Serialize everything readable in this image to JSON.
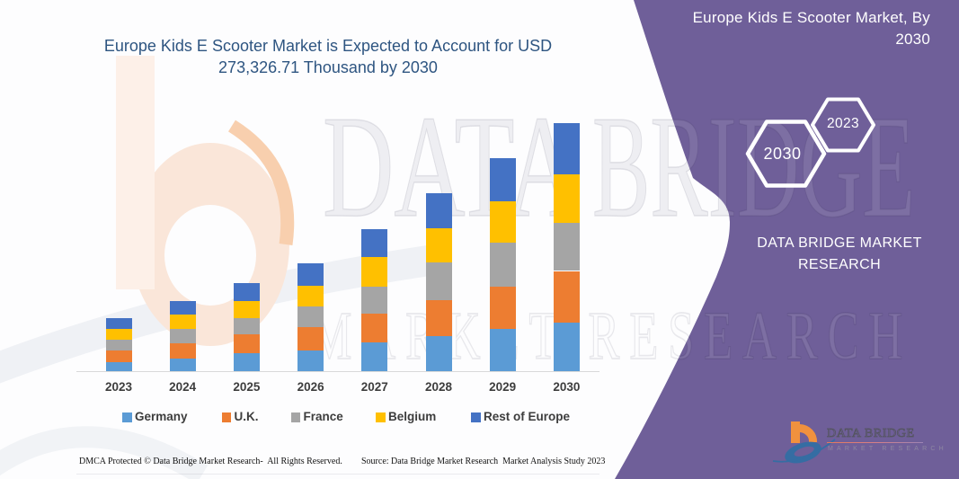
{
  "chart_title": {
    "line1": "Europe Kids E Scooter Market is Expected to Account for USD",
    "line2": "273,326.71 Thousand by 2030"
  },
  "chart_data": {
    "type": "bar",
    "stacked": true,
    "title": "Europe Kids E Scooter Market is Expected to Account for USD 273,326.71 Thousand by 2030",
    "unit": "USD Thousand",
    "categories": [
      "2023",
      "2024",
      "2025",
      "2026",
      "2027",
      "2028",
      "2029",
      "2030"
    ],
    "series": [
      {
        "name": "Germany",
        "color": "#5B9BD5",
        "values": [
          10087,
          14240,
          19481,
          22250,
          31150,
          38765,
          46775,
          53790
        ]
      },
      {
        "name": "U.K.",
        "color": "#ED7D31",
        "values": [
          12757,
          16218,
          21261,
          26503,
          31744,
          39259,
          45786,
          56466
        ]
      },
      {
        "name": "France",
        "color": "#A5A5A5",
        "values": [
          11471,
          16317,
          17108,
          22151,
          29865,
          41435,
          48456,
          53302
        ]
      },
      {
        "name": "Belgium",
        "color": "#FFC000",
        "values": [
          11966,
          15427,
          19481,
          22547,
          33128,
          37677,
          46281,
          52709
        ]
      },
      {
        "name": "Rest of Europe",
        "color": "#4472C4",
        "values": [
          11669,
          14636,
          19283,
          25217,
          30260,
          38666,
          47369,
          57060
        ]
      }
    ],
    "total_2030": "273,326.71",
    "legend_position": "bottom",
    "grid": false,
    "xlabel": "",
    "ylabel": "",
    "ylim": [
      0,
      280000
    ]
  },
  "watermark": {
    "row1": "DATA BRIDGE",
    "row2": "MARKET RESEARCH"
  },
  "panel": {
    "color": "#6F5F99",
    "title_line1": "Europe Kids E Scooter Market, By",
    "title_line2": "2030",
    "hexagon_left": "2030",
    "hexagon_right": "2023",
    "brand_line1": "DATA BRIDGE MARKET",
    "brand_line2": "RESEARCH",
    "logo_name": "DATA BRIDGE",
    "logo_sub": "MARKET RESEARCH"
  },
  "footer": {
    "left": "DMCA Protected © Data Bridge Market Research-  All Rights Reserved.",
    "right": "Source: Data Bridge Market Research  Market Analysis Study 2023"
  }
}
